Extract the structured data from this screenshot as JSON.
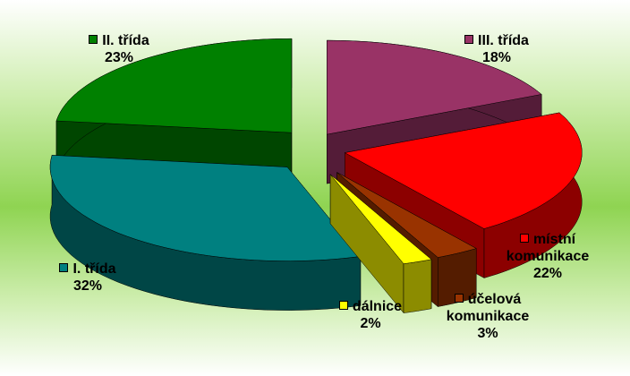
{
  "chart_data": {
    "type": "pie3d",
    "categories": [
      "III. třída",
      "místní komunikace",
      "účelová komunikace",
      "dálnice",
      "I. třída",
      "II. třída"
    ],
    "values": [
      18,
      22,
      3,
      2,
      32,
      23
    ],
    "value_labels": [
      "18%",
      "22%",
      "3%",
      "2%",
      "32%",
      "23%"
    ],
    "colors": [
      "#993366",
      "#ff0000",
      "#993300",
      "#ffff00",
      "#008080",
      "#008000"
    ]
  }
}
